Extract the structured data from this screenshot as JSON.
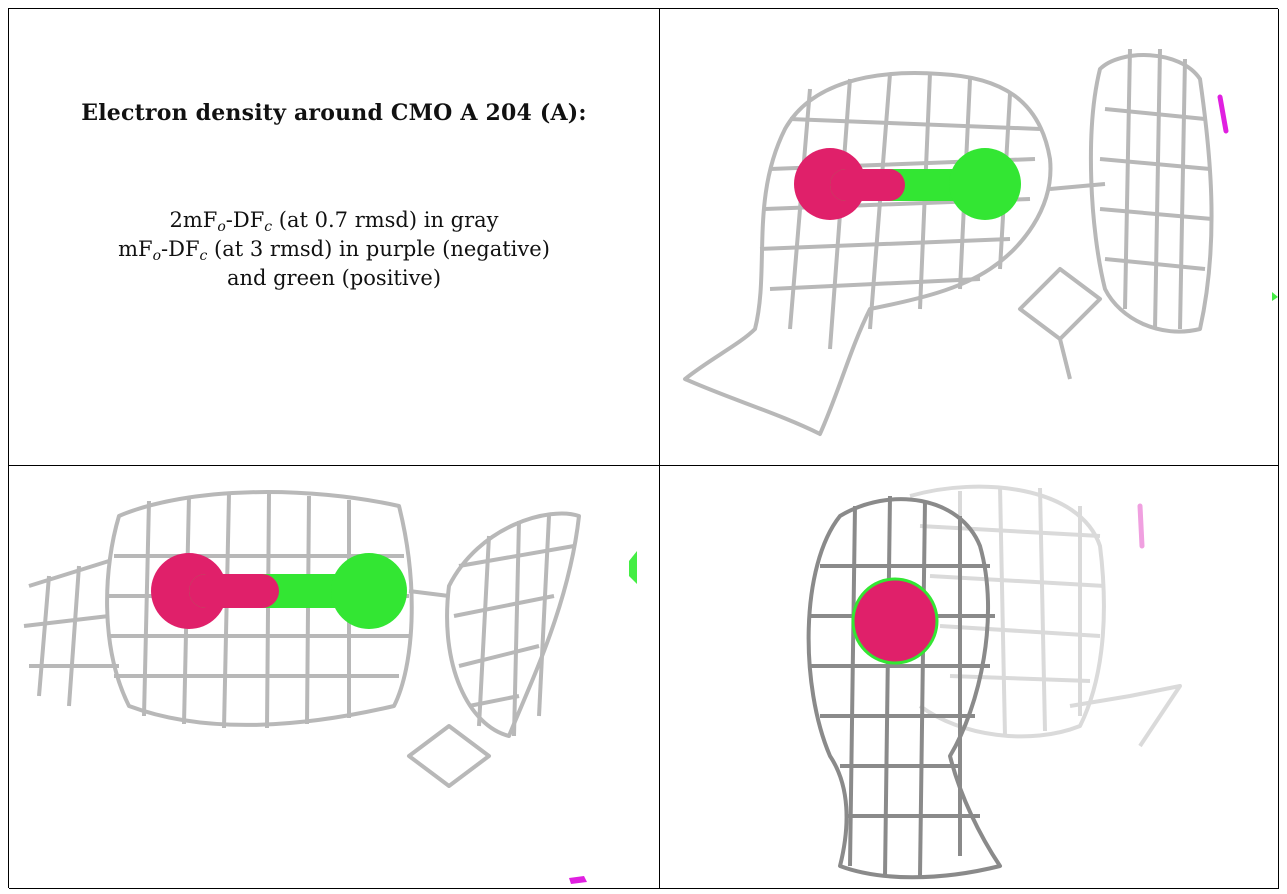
{
  "caption": {
    "title": "Electron density around CMO A 204 (A):",
    "line1_prefix": "2mF",
    "line1_sub1": "o",
    "line1_mid": "-DF",
    "line1_sub2": "c",
    "line1_suffix": " (at 0.7 rmsd) in gray",
    "line2_prefix": "mF",
    "line2_sub1": "o",
    "line2_mid": "-DF",
    "line2_sub2": "c",
    "line2_suffix": " (at 3 rmsd) in purple (negative)",
    "line3": "and green (positive)"
  },
  "colors": {
    "mesh": "#b8b8b8",
    "mesh_dark": "#8a8a8a",
    "oxygen": "#e0206a",
    "carbon": "#33e633",
    "negative": "#e020e0",
    "positive": "#44ee44"
  }
}
